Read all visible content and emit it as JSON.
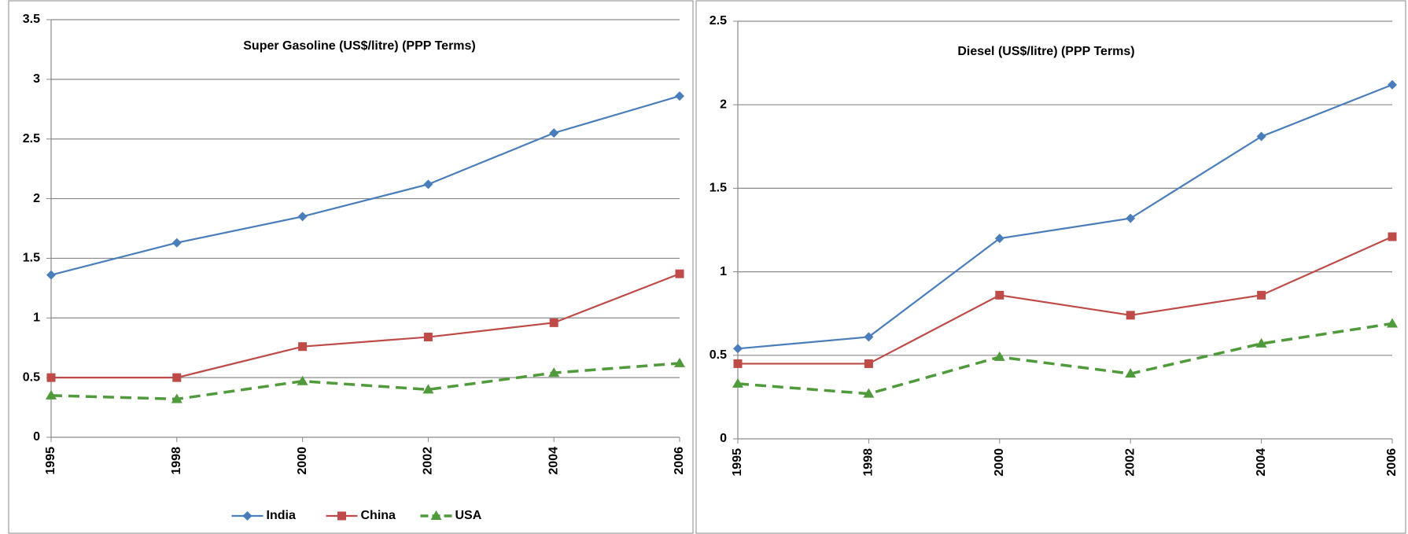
{
  "chart_data": [
    {
      "type": "line",
      "title": "Super Gasoline (US$/litre) (PPP Terms)",
      "categories": [
        "1995",
        "1998",
        "2000",
        "2002",
        "2004",
        "2006"
      ],
      "series": [
        {
          "name": "India",
          "color": "#4a7ebb",
          "marker": "diamond",
          "dashed": false,
          "values": [
            1.36,
            1.63,
            1.85,
            2.12,
            2.55,
            2.86
          ]
        },
        {
          "name": "China",
          "color": "#be4b48",
          "marker": "square",
          "dashed": false,
          "values": [
            0.5,
            0.5,
            0.76,
            0.84,
            0.96,
            1.37
          ]
        },
        {
          "name": "USA",
          "color": "#4f9a3a",
          "marker": "triangle",
          "dashed": true,
          "values": [
            0.35,
            0.32,
            0.47,
            0.4,
            0.54,
            0.62
          ]
        }
      ],
      "ylim": [
        0,
        3.5
      ],
      "yticks": [
        0,
        0.5,
        1,
        1.5,
        2,
        2.5,
        3,
        3.5
      ],
      "grid": true,
      "legend": "bottom"
    },
    {
      "type": "line",
      "title": "Diesel (US$/litre) (PPP Terms)",
      "categories": [
        "1995",
        "1998",
        "2000",
        "2002",
        "2004",
        "2006"
      ],
      "series": [
        {
          "color": "#4a7ebb",
          "marker": "diamond",
          "dashed": false,
          "values": [
            0.54,
            0.61,
            1.2,
            1.32,
            1.81,
            2.12
          ]
        },
        {
          "color": "#be4b48",
          "marker": "square",
          "dashed": false,
          "values": [
            0.45,
            0.45,
            0.86,
            0.74,
            0.86,
            1.21
          ]
        },
        {
          "color": "#4f9a3a",
          "marker": "triangle",
          "dashed": true,
          "values": [
            0.33,
            0.27,
            0.49,
            0.39,
            0.57,
            0.69
          ]
        }
      ],
      "ylim": [
        0,
        2.5
      ],
      "yticks": [
        0,
        0.5,
        1,
        1.5,
        2,
        2.5
      ],
      "grid": true,
      "legend": false
    }
  ]
}
